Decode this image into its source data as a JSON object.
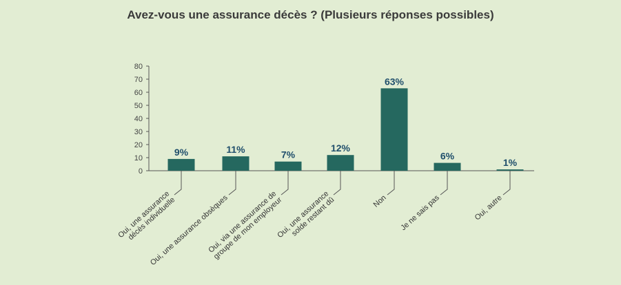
{
  "chart_data": {
    "type": "bar",
    "title": "Avez-vous une assurance décès ? (Plusieurs réponses possibles)",
    "categories": [
      [
        "Oui, une assurance",
        "décès individuelle"
      ],
      [
        "Oui, une assurance obsèques"
      ],
      [
        "Oui, via une assurance de",
        "groupe de mon employeur"
      ],
      [
        "Oui, une assurance",
        "solde restant dû"
      ],
      [
        "Non"
      ],
      [
        "Je ne sais pas"
      ],
      [
        "Oui, autre"
      ]
    ],
    "values": [
      9,
      11,
      7,
      12,
      63,
      6,
      1
    ],
    "value_labels": [
      "9%",
      "11%",
      "7%",
      "12%",
      "63%",
      "6%",
      "1%"
    ],
    "ylim": [
      0,
      80
    ],
    "yticks": [
      0,
      10,
      20,
      30,
      40,
      50,
      60,
      70,
      80
    ],
    "bar_color": "#25685f",
    "label_color": "#1f4e6b",
    "grid": false
  }
}
